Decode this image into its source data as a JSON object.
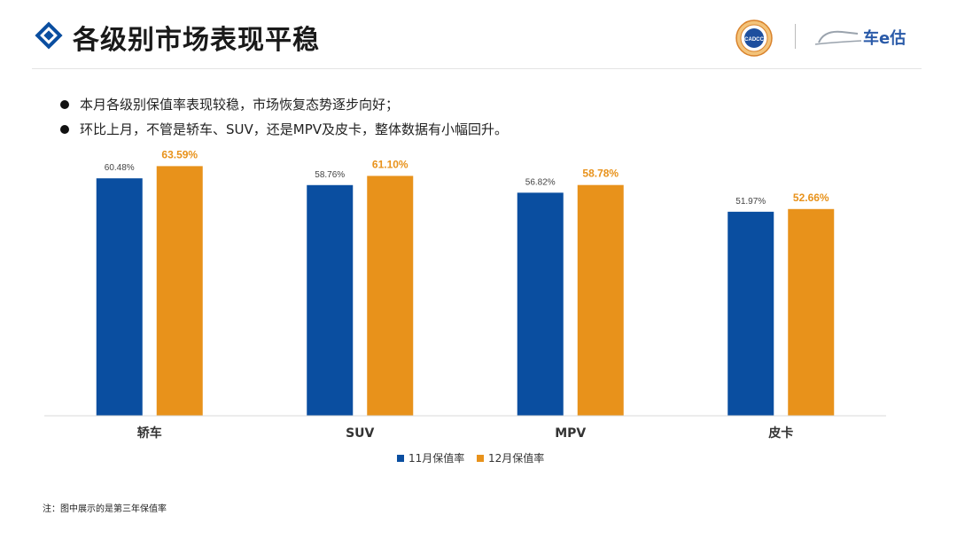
{
  "header": {
    "title": "各级别市场表现平稳",
    "logo_cadcc_text": "CADCC",
    "logo_che_text": "车e估"
  },
  "bullets": [
    "本月各级别保值率表现较稳，市场恢复态势逐步向好；",
    "环比上月，不管是轿车、SUV，还是MPV及皮卡，整体数据有小幅回升。"
  ],
  "colors": {
    "nov": "#0a4ea0",
    "dec": "#e8921b",
    "dec_label": "#e8921b",
    "nov_label": "#444444"
  },
  "chart_data": {
    "type": "bar",
    "title": "",
    "xlabel": "",
    "ylabel": "",
    "categories": [
      "轿车",
      "SUV",
      "MPV",
      "皮卡"
    ],
    "series": [
      {
        "name": "11月保值率",
        "values": [
          60.48,
          58.76,
          56.82,
          51.97
        ],
        "labels": [
          "60.48%",
          "58.76%",
          "56.82%",
          "51.97%"
        ]
      },
      {
        "name": "12月保值率",
        "values": [
          63.59,
          61.1,
          58.78,
          52.66
        ],
        "labels": [
          "63.59%",
          "61.10%",
          "58.78%",
          "52.66%"
        ]
      }
    ],
    "ylim": [
      0,
      70
    ],
    "grid": false,
    "legend_position": "bottom-center"
  },
  "footnote": "注：图中展示的是第三年保值率"
}
